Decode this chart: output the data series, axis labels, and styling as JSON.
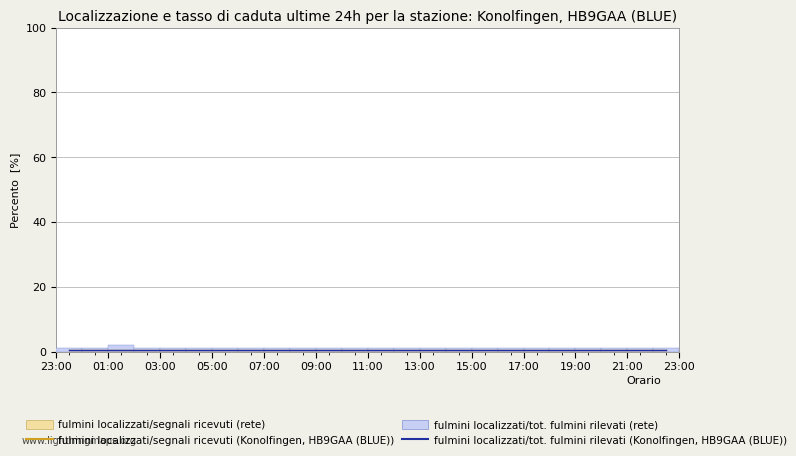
{
  "title": "Localizzazione e tasso di caduta ultime 24h per la stazione: Konolfingen, HB9GAA (BLUE)",
  "ylabel": "Percento  [%]",
  "xlabel": "",
  "ylim": [
    0,
    100
  ],
  "yticks": [
    0,
    20,
    40,
    60,
    80,
    100
  ],
  "x_labels": [
    "23:00",
    "01:00",
    "03:00",
    "05:00",
    "07:00",
    "09:00",
    "11:00",
    "13:00",
    "15:00",
    "17:00",
    "19:00",
    "21:00",
    "23:00"
  ],
  "n_hours": 24,
  "bar_color_network": "#f5dfa0",
  "bar_color_network_edge": "#c8b060",
  "bar_color_station": "#c8cff5",
  "bar_color_station_edge": "#8090d0",
  "line_color_network": "#d0a020",
  "line_color_station": "#2030a0",
  "background_color": "#f0f0e8",
  "plot_bg_color": "#ffffff",
  "grid_color": "#aaaaaa",
  "legend_labels": [
    "fulmini localizzati/segnali ricevuti (rete)",
    "fulmini localizzati/segnali ricevuti (Konolfingen, HB9GAA (BLUE))",
    "fulmini localizzati/tot. fulmini rilevati (rete)",
    "fulmini localizzati/tot. fulmini rilevati (Konolfingen, HB9GAA (BLUE))"
  ],
  "orario_label": "Orario",
  "watermark": "www.lightningmaps.org",
  "title_fontsize": 10,
  "axis_fontsize": 8,
  "tick_fontsize": 8,
  "bar_values_network": [
    0,
    0,
    0,
    0,
    0,
    0,
    0,
    0,
    0,
    0,
    0,
    0,
    0,
    0,
    0,
    0,
    0,
    0,
    0,
    0,
    0,
    0,
    0,
    0
  ],
  "bar_values_station": [
    1,
    1,
    2,
    1,
    1,
    1,
    1,
    1,
    1,
    1,
    1,
    1,
    1,
    1,
    1,
    1,
    1,
    1,
    1,
    1,
    1,
    1,
    1,
    1
  ],
  "line_values_network": [
    0.5,
    0.5,
    0.5,
    0.5,
    0.5,
    0.5,
    0.5,
    0.5,
    0.5,
    0.5,
    0.5,
    0.5,
    0.5,
    0.5,
    0.5,
    0.5,
    0.5,
    0.5,
    0.5,
    0.5,
    0.5,
    0.5,
    0.5,
    0.5
  ],
  "line_values_station": [
    0.5,
    0.5,
    0.5,
    0.5,
    0.5,
    0.5,
    0.5,
    0.5,
    0.5,
    0.5,
    0.5,
    0.5,
    0.5,
    0.5,
    0.5,
    0.5,
    0.5,
    0.5,
    0.5,
    0.5,
    0.5,
    0.5,
    0.5,
    0.5
  ]
}
